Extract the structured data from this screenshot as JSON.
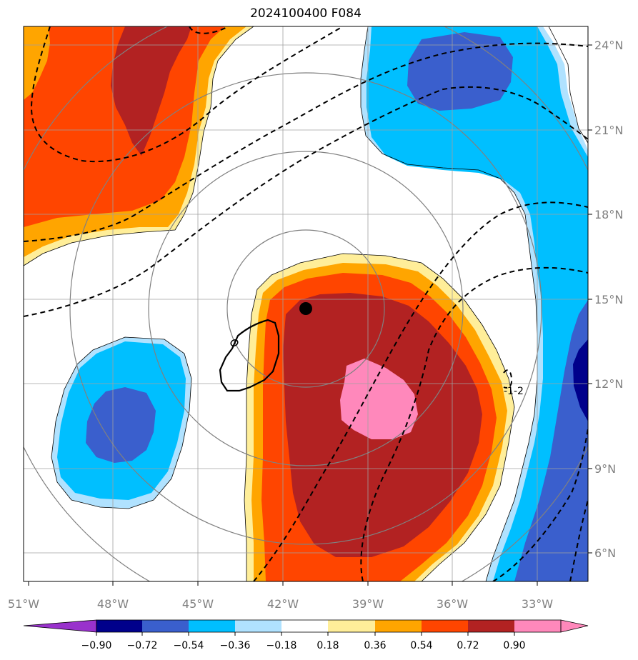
{
  "title": "2024100400 F084",
  "map": {
    "lon_labels": [
      "51°W",
      "48°W",
      "45°W",
      "42°W",
      "39°W",
      "36°W",
      "33°W"
    ],
    "lat_labels": [
      "24°N",
      "21°N",
      "18°N",
      "15°N",
      "12°N",
      "9°N",
      "6°N"
    ],
    "contour_label": "-1-2",
    "storm_center": {
      "lon": -41.2,
      "lat": 14.7
    }
  },
  "colorbar": {
    "ticks": [
      "−0.90",
      "−0.72",
      "−0.54",
      "−0.36",
      "−0.18",
      "0.18",
      "0.36",
      "0.54",
      "0.72",
      "0.90"
    ],
    "colors": [
      "#9932cc",
      "#00008b",
      "#3a5fcd",
      "#00bfff",
      "#b0e2ff",
      "#ffffff",
      "#ffee99",
      "#ffa500",
      "#ff4500",
      "#b22222",
      "#ff88bb"
    ]
  }
}
